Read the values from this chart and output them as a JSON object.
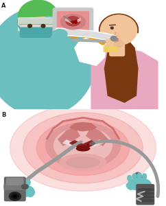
{
  "label_A": "A",
  "label_B": "B",
  "label_fontsize": 6,
  "label_color": "#222222",
  "bg_color": "#ffffff",
  "teal": "#6bbfbf",
  "teal_dark": "#4aa8a8",
  "green_cap": "#55bb55",
  "skin": "#f2c49a",
  "skin_dark": "#e0a87a",
  "pink_shirt": "#e8a8c0",
  "brown_hair": "#7a3810",
  "gray_inst": "#999999",
  "gray_dark": "#666666",
  "gray_light": "#cccccc",
  "orange_tube": "#e8920a",
  "yellow_gauze": "#f0d060",
  "monitor_gray": "#c8c8c8",
  "screen_pink_outer": "#e89090",
  "screen_pink_inner": "#cc5555",
  "screen_dark": "#993333",
  "larynx_outer": "#e8a0a0",
  "larynx_mid": "#d07070",
  "larynx_inner": "#b84040",
  "larynx_bg": "#f0b0b0",
  "glottis": "#882222",
  "white_vf": "#f5e0e0",
  "black": "#111111"
}
